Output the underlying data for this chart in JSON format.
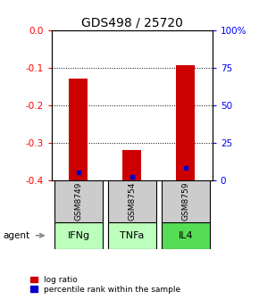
{
  "title": "GDS498 / 25720",
  "categories": [
    "IFNg",
    "TNFa",
    "IL4"
  ],
  "sample_ids": [
    "GSM8749",
    "GSM8754",
    "GSM8759"
  ],
  "log_ratios": [
    -0.13,
    -0.32,
    -0.095
  ],
  "percentile_ranks": [
    5.0,
    2.0,
    8.0
  ],
  "ylim_left": [
    -0.4,
    0.0
  ],
  "ylim_right": [
    0,
    100
  ],
  "yticks_left": [
    0.0,
    -0.1,
    -0.2,
    -0.3,
    -0.4
  ],
  "yticks_right": [
    0,
    25,
    50,
    75,
    100
  ],
  "bar_color": "#cc0000",
  "percentile_color": "#0000cc",
  "bar_width": 0.35,
  "cell_color_gsm": "#cccccc",
  "cell_colors_agent": [
    "#bbffbb",
    "#bbffbb",
    "#55dd55"
  ],
  "background_color": "#ffffff",
  "legend_log_ratio": "log ratio",
  "legend_percentile": "percentile rank within the sample",
  "agent_label": "agent",
  "title_fontsize": 10,
  "tick_fontsize": 7.5,
  "legend_fontsize": 6.5,
  "gsm_fontsize": 6.5,
  "agent_fontsize": 8
}
